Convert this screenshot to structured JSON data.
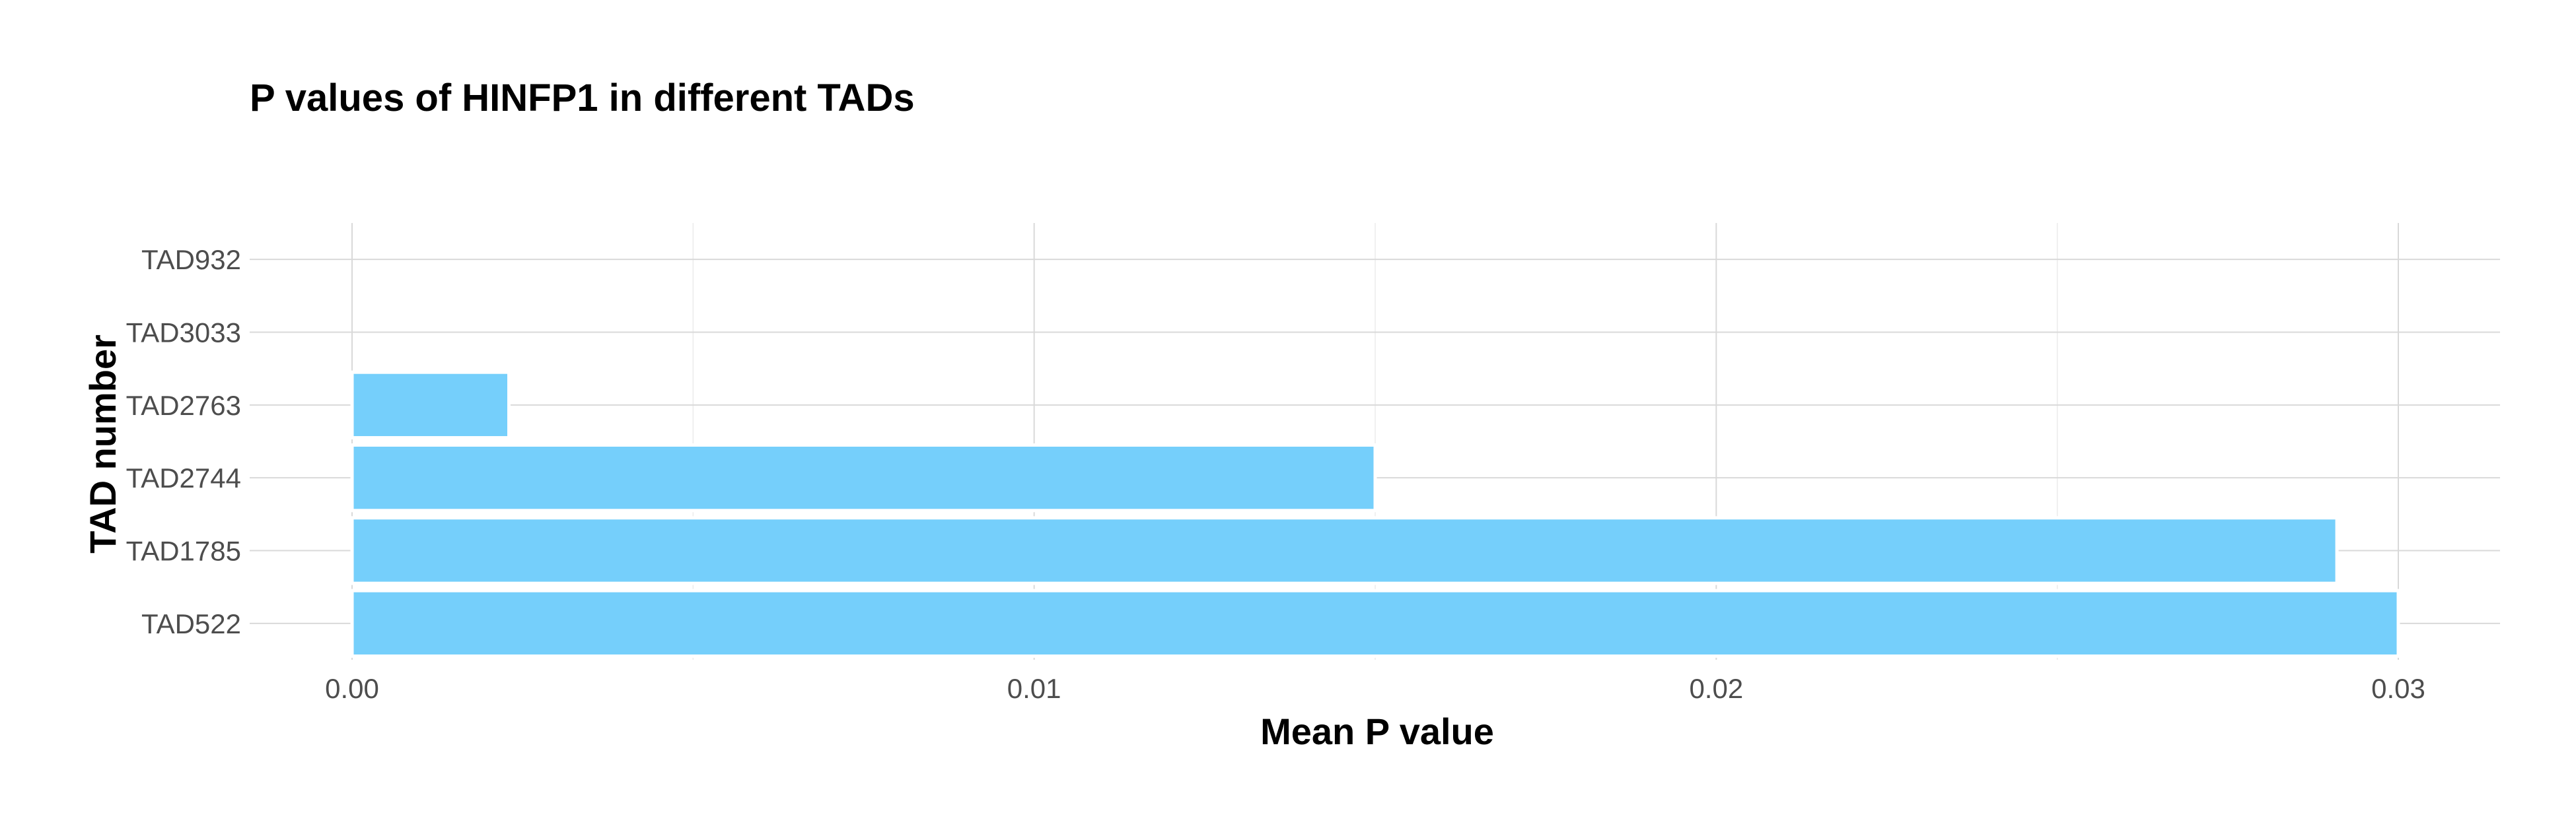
{
  "chart_data": {
    "type": "bar",
    "orientation": "horizontal",
    "title": "P values of HINFP1 in different TADs",
    "xlabel": "Mean P value",
    "ylabel": "TAD number",
    "categories": [
      "TAD522",
      "TAD1785",
      "TAD2744",
      "TAD2763",
      "TAD3033",
      "TAD932"
    ],
    "values": [
      0.03,
      0.0291,
      0.015,
      0.0023,
      0,
      0
    ],
    "xlim": [
      0,
      0.0315
    ],
    "x_ticks": [
      0.0,
      0.01,
      0.02,
      0.03
    ],
    "x_tick_labels": [
      "0.00",
      "0.01",
      "0.02",
      "0.03"
    ],
    "grid": true,
    "bar_color": "#75cffb"
  }
}
